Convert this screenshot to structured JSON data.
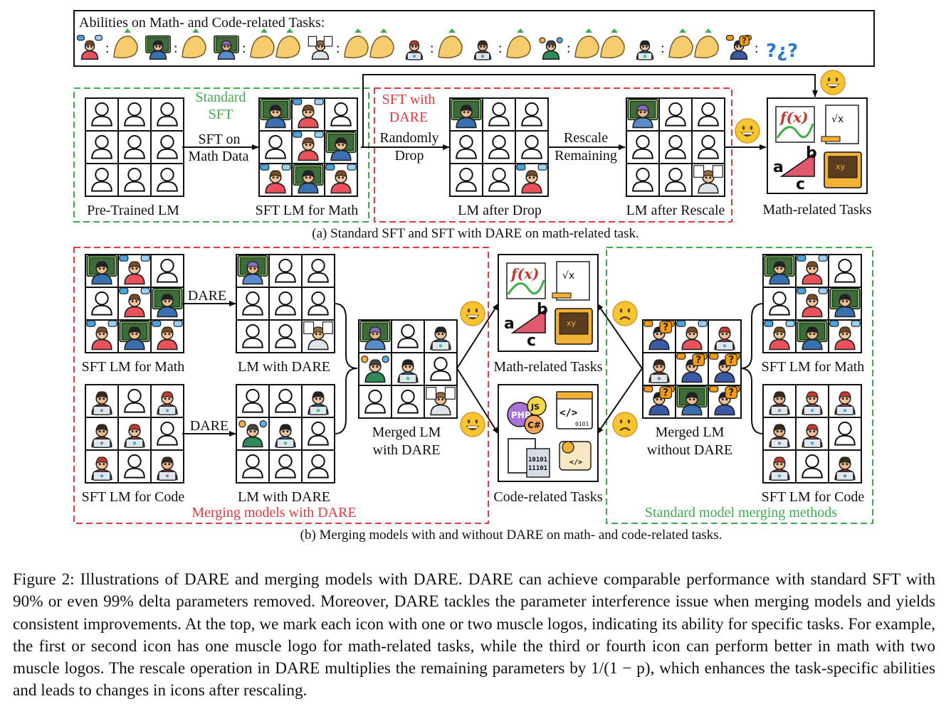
{
  "abilities_title": "Abilities on Math- and Code-related Tasks:",
  "abilities": [
    {
      "icon": "student-icon",
      "muscles": 1
    },
    {
      "icon": "graduate-teacher-icon",
      "muscles": 1
    },
    {
      "icon": "math-professor-icon",
      "muscles": 2
    },
    {
      "icon": "math-scholar-icon",
      "muscles": 2
    },
    {
      "icon": "coder-icon",
      "muscles": 1
    },
    {
      "icon": "developer-icon",
      "muscles": 1
    },
    {
      "icon": "ai-engineer-icon",
      "muscles": 2
    },
    {
      "icon": "senior-developer-icon",
      "muscles": 2
    },
    {
      "icon": "confused-person-icon",
      "muscles": 0,
      "marks": "?"
    }
  ],
  "panel_a": {
    "standard_sft_label": "Standard SFT",
    "standard_sft_line1": "Standard",
    "standard_sft_line2": "SFT",
    "sft_with_dare_line1": "SFT with",
    "sft_with_dare_line2": "DARE",
    "arrow_sft_line1": "SFT on",
    "arrow_sft_line2": "Math Data",
    "arrow_drop_line1": "Randomly",
    "arrow_drop_line2": "Drop",
    "arrow_rescale_line1": "Rescale",
    "arrow_rescale_line2": "Remaining",
    "label_pretrained": "Pre-Trained LM",
    "label_sft_math": "SFT LM for Math",
    "label_after_drop": "LM after Drop",
    "label_after_rescale": "LM after Rescale",
    "label_math_tasks": "Math-related Tasks",
    "caption": "(a) Standard SFT and SFT with DARE on math-related task."
  },
  "panel_b": {
    "dare_label": "DARE",
    "label_sft_math": "SFT LM for Math",
    "label_sft_code": "SFT LM for Code",
    "label_lm_dare": "LM with DARE",
    "label_merged_dare_line1": "Merged LM",
    "label_merged_dare_line2": "with DARE",
    "label_merged_nodare_line1": "Merged LM",
    "label_merged_nodare_line2": "without DARE",
    "label_math_tasks": "Math-related Tasks",
    "label_code_tasks": "Code-related Tasks",
    "merging_with_dare": "Merging models with DARE",
    "standard_merging": "Standard model merging methods",
    "caption": "(b) Merging models with and without DARE on math- and code-related tasks."
  },
  "task_icons": {
    "math": [
      "function-plot-icon",
      "formula-sheet-icon",
      "triangle-icon",
      "math-book-icon"
    ],
    "math_text": [
      "f(x)",
      "√x",
      "a",
      "b",
      "c",
      "xy"
    ],
    "code": [
      "programming-languages-icon",
      "code-window-icon",
      "image-file-icon",
      "code-scroll-icon"
    ],
    "code_text": [
      "PHP",
      "JS",
      "C#",
      "</>",
      "0101",
      "10101",
      "11101"
    ]
  },
  "figure_caption": "Figure 2: Illustrations of DARE and merging models with DARE. DARE can achieve comparable performance with standard SFT with 90% or even 99% delta parameters removed. Moreover, DARE tackles the parameter interference issue when merging models and yields consistent improvements. At the top, we mark each icon with one or two muscle logos, indicating its ability for specific tasks. For example, the first or second icon has one muscle logo for math-related tasks, while the third or fourth icon can perform better in math with two muscle logos. The rescale operation in DARE multiplies the remaining parameters by 1/(1 − p), which enhances the task-specific abilities and leads to changes in icons after rescaling.",
  "colors": {
    "green": "#3fae49",
    "red": "#e0393e",
    "text": "#111111",
    "emoji_face": "#f7c62f",
    "emoji_edge": "#d9952a",
    "muscle": "#f5cd6e",
    "muscle_edge": "#7a5a1f"
  }
}
